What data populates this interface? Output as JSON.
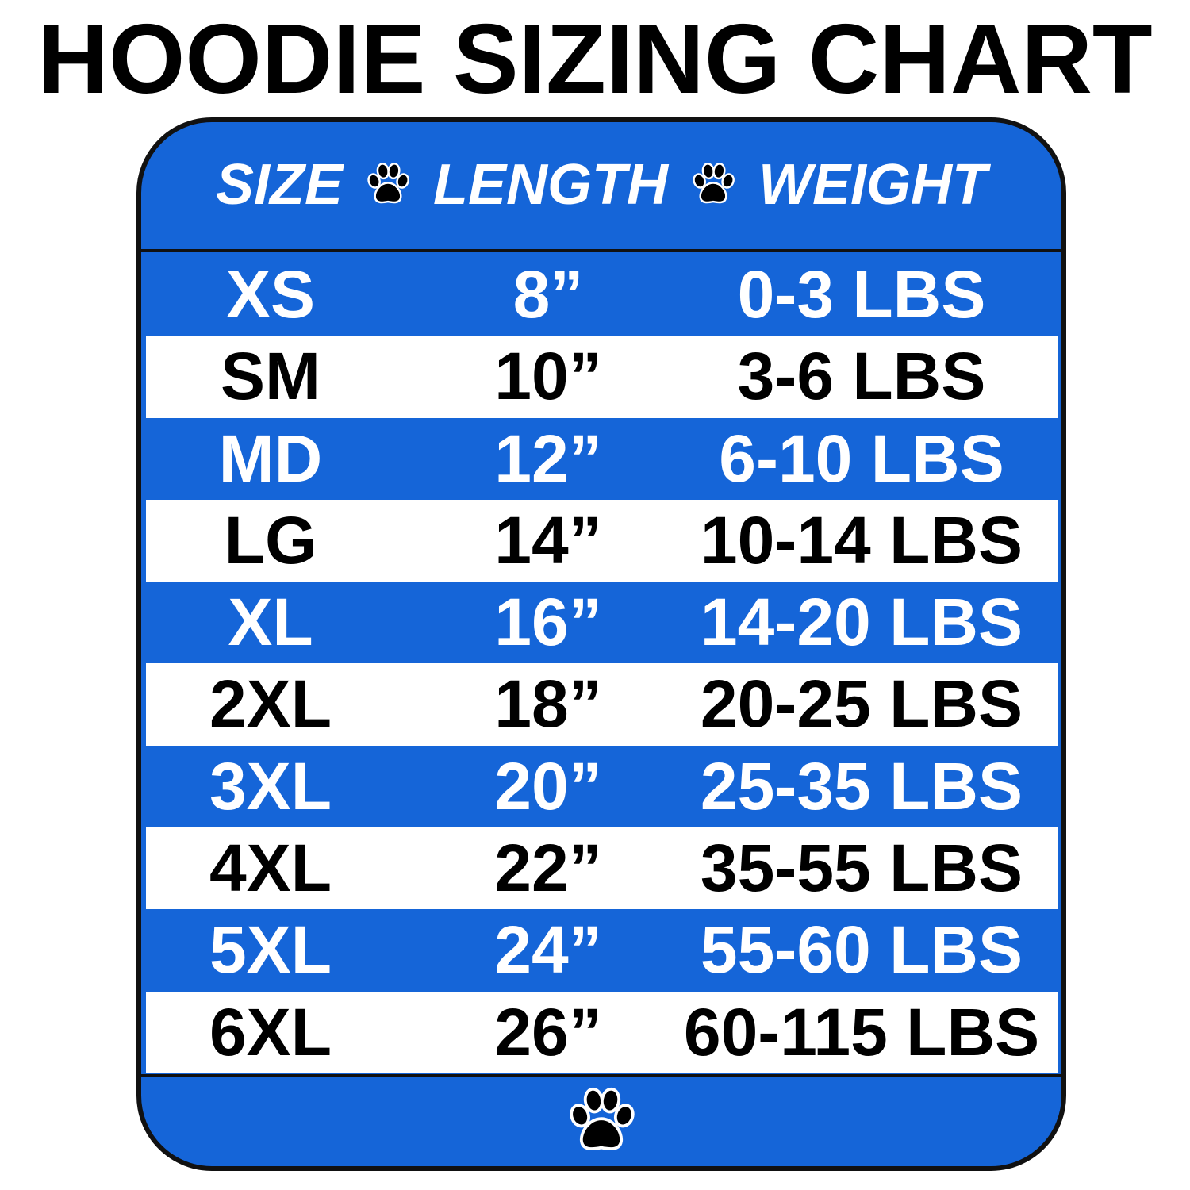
{
  "title": "HOODIE SIZING CHART",
  "colors": {
    "blue": "#1565d8",
    "white": "#ffffff",
    "text_dark": "#000000"
  },
  "header": {
    "size": "SIZE",
    "length": "LENGTH",
    "weight": "WEIGHT",
    "separator_icon": "paw-print-icon"
  },
  "rows": [
    {
      "size": "XS",
      "length": "8”",
      "weight": "0-3 LBS",
      "band": "blue"
    },
    {
      "size": "SM",
      "length": "10”",
      "weight": "3-6 LBS",
      "band": "white"
    },
    {
      "size": "MD",
      "length": "12”",
      "weight": "6-10 LBS",
      "band": "blue"
    },
    {
      "size": "LG",
      "length": "14”",
      "weight": "10-14 LBS",
      "band": "white"
    },
    {
      "size": "XL",
      "length": "16”",
      "weight": "14-20 LBS",
      "band": "blue"
    },
    {
      "size": "2XL",
      "length": "18”",
      "weight": "20-25 LBS",
      "band": "white"
    },
    {
      "size": "3XL",
      "length": "20”",
      "weight": "25-35 LBS",
      "band": "blue"
    },
    {
      "size": "4XL",
      "length": "22”",
      "weight": "35-55 LBS",
      "band": "white"
    },
    {
      "size": "5XL",
      "length": "24”",
      "weight": "55-60 LBS",
      "band": "blue"
    },
    {
      "size": "6XL",
      "length": "26”",
      "weight": "60-115 LBS",
      "band": "white"
    }
  ],
  "footer": {
    "icon": "paw-print-icon"
  }
}
